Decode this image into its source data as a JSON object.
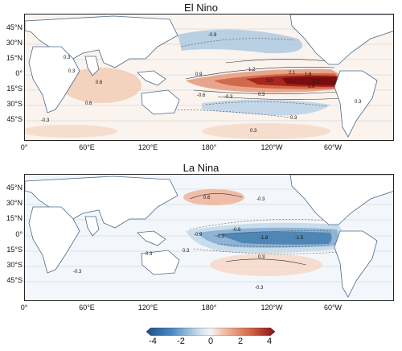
{
  "panels": [
    {
      "title": "El Nino"
    },
    {
      "title": "La Nina"
    }
  ],
  "lat_ticks": [
    "45°N",
    "30°N",
    "15°N",
    "0°",
    "15°S",
    "30°S",
    "45°S"
  ],
  "lon_ticks": [
    "0°",
    "60°E",
    "120°E",
    "180°",
    "120°W",
    "60°W"
  ],
  "colorbar": {
    "ticks": [
      "-4",
      "-2",
      "0",
      "2",
      "4"
    ],
    "colors": [
      "#1f4e8a",
      "#4a8ac2",
      "#c5dcea",
      "#f5f5f5",
      "#f2c2a8",
      "#d46a4a",
      "#8b1010"
    ]
  },
  "el_nino_labels": [
    "-0.9",
    "0.3",
    "0.6",
    "0.9",
    "1.2",
    "2.1",
    "1.8",
    "1.5",
    "3.0",
    "2.7",
    "0.3",
    "-0.3",
    "-0.6",
    "0.3",
    "-0.3",
    "0.3",
    "0.3",
    "0.6",
    "0.3"
  ],
  "la_nina_labels": [
    "0.6",
    "-0.3",
    "-0.6",
    "-0.9",
    "-1.2",
    "-1.8",
    "-1.5",
    "0.3",
    "0.3",
    "-0.3",
    "0.3",
    "-0.3"
  ]
}
